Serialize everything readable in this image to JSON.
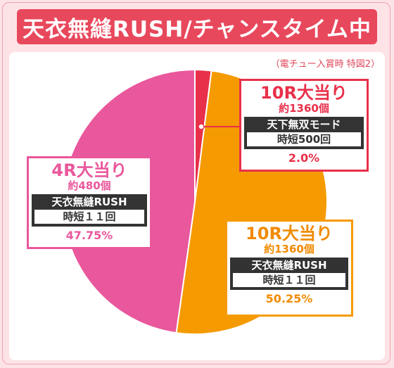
{
  "title": "天衣無縫RUSH/チャンスタイム中",
  "note": "（電チュー入賞時 特図2）",
  "colors": {
    "background": "#fde3e6",
    "title_bar": "#e8485c",
    "pink": "#e9579c",
    "orange": "#f59a00",
    "red": "#e8304a"
  },
  "chart_data": {
    "type": "pie",
    "slices": [
      {
        "value": 2.0,
        "color": "#e8304a",
        "head": "10R大当り",
        "prize": "約1360個",
        "mode": "天下無双モード",
        "time": "時短500回",
        "percent": "2.0%"
      },
      {
        "value": 50.25,
        "color": "#f59a00",
        "head": "10R大当り",
        "prize": "約1360個",
        "mode": "天衣無縫RUSH",
        "time": "時短１１回",
        "percent": "50.25%"
      },
      {
        "value": 47.75,
        "color": "#e9579c",
        "head": "4R大当り",
        "prize": "約480個",
        "mode": "天衣無縫RUSH",
        "time": "時短１１回",
        "percent": "47.75%"
      }
    ]
  }
}
